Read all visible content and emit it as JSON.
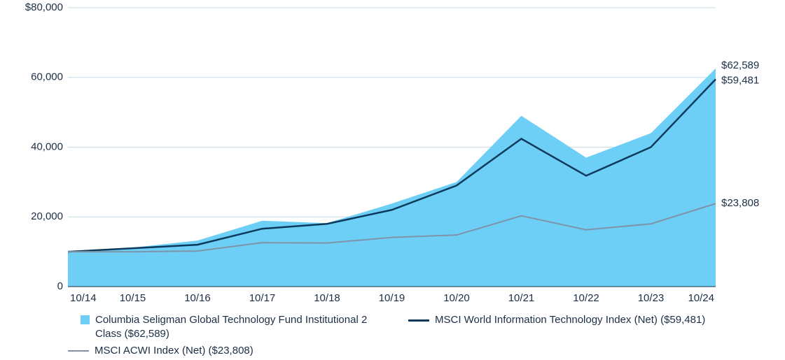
{
  "chart_data": {
    "type": "area_line",
    "categories": [
      "10/14",
      "10/15",
      "10/16",
      "10/17",
      "10/18",
      "10/19",
      "10/20",
      "10/21",
      "10/22",
      "10/23",
      "10/24"
    ],
    "series": [
      {
        "name": "Columbia Seligman Global Technology Fund Institutional 2 Class ($62,589)",
        "kind": "area",
        "color": "#6dcff6",
        "values": [
          10000,
          11200,
          13200,
          18900,
          18200,
          23800,
          30000,
          49000,
          37000,
          44000,
          62589
        ],
        "value_labels": [
          null,
          null,
          null,
          null,
          null,
          null,
          null,
          null,
          null,
          null,
          "$62,589"
        ]
      },
      {
        "name": "MSCI World Information Technology Index (Net) ($59,481)",
        "kind": "line",
        "color": "#0d3a5c",
        "values": [
          10000,
          11000,
          12000,
          16600,
          18000,
          22000,
          29000,
          42400,
          31800,
          40000,
          59481
        ],
        "value_labels": [
          null,
          null,
          null,
          null,
          null,
          null,
          null,
          null,
          null,
          null,
          "$59,481"
        ]
      },
      {
        "name": "MSCI ACWI Index (Net) ($23,808)",
        "kind": "line",
        "color": "#7f93a8",
        "values": [
          10000,
          10000,
          10200,
          12600,
          12500,
          14100,
          14800,
          20300,
          16300,
          18000,
          23808
        ],
        "value_labels": [
          null,
          null,
          null,
          null,
          null,
          null,
          null,
          null,
          null,
          null,
          "$23,808"
        ]
      }
    ],
    "ylim": [
      0,
      80000
    ],
    "yticks": [
      0,
      {
        "value": 20000,
        "label": "20,000"
      },
      {
        "value": 40000,
        "label": "40,000"
      },
      {
        "value": 60000,
        "label": "60,000"
      },
      {
        "value": 80000,
        "label": "$80,000"
      }
    ],
    "grid": true
  }
}
